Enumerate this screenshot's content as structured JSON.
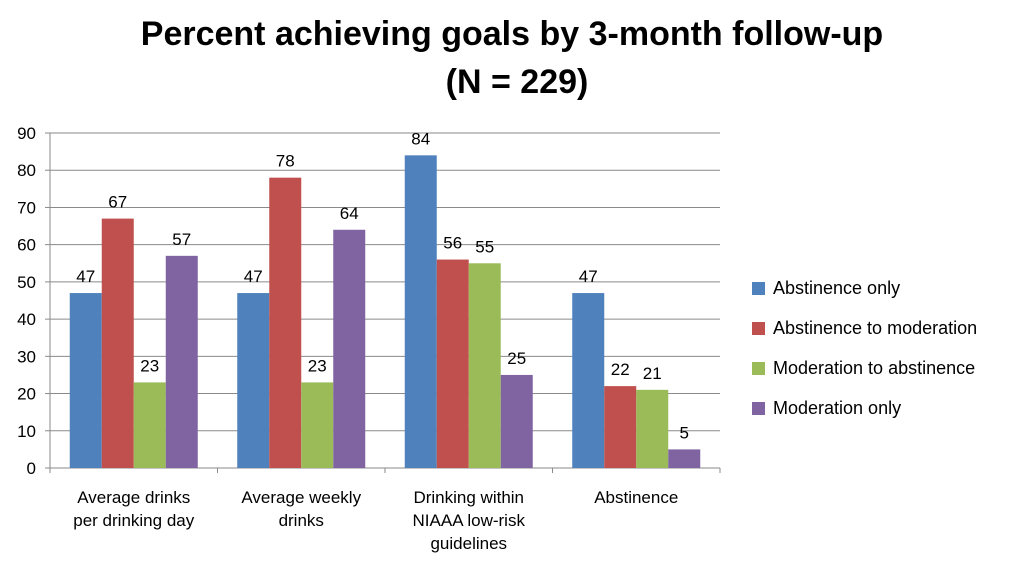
{
  "chart_data": {
    "type": "bar",
    "title": "Percent achieving goals by 3-month follow-up",
    "subtitle": "(N = 229)",
    "categories": [
      [
        "Average drinks",
        "per drinking day"
      ],
      [
        "Average weekly",
        "drinks"
      ],
      [
        "Drinking within",
        "NIAAA low-risk",
        "guidelines"
      ],
      [
        "Abstinence"
      ]
    ],
    "series": [
      {
        "name": "Abstinence only",
        "color": "#4F81BD",
        "values": [
          47,
          47,
          84,
          47
        ]
      },
      {
        "name": "Abstinence to moderation",
        "color": "#C0504D",
        "values": [
          67,
          78,
          56,
          22
        ]
      },
      {
        "name": "Moderation to abstinence",
        "color": "#9BBB59",
        "values": [
          23,
          23,
          55,
          21
        ]
      },
      {
        "name": "Moderation only",
        "color": "#8064A2",
        "values": [
          57,
          64,
          25,
          5
        ]
      }
    ],
    "ylim": [
      0,
      90
    ],
    "yticks": [
      0,
      10,
      20,
      30,
      40,
      50,
      60,
      70,
      80,
      90
    ],
    "grid": true,
    "legend_position": "right",
    "data_labels": true
  }
}
